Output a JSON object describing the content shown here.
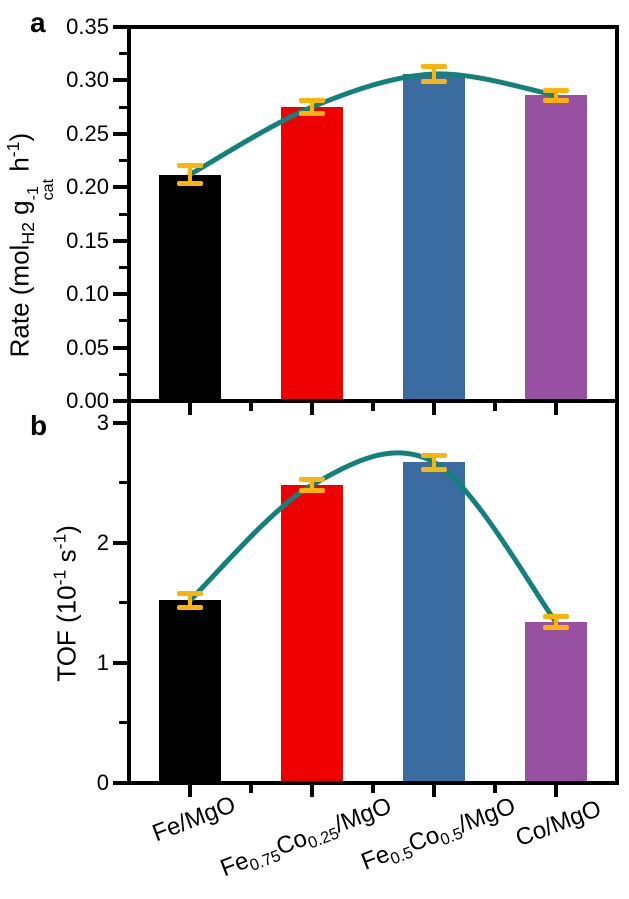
{
  "figure": {
    "background": "#ffffff",
    "panels": [
      {
        "letter": "a"
      },
      {
        "letter": "b"
      }
    ]
  },
  "categories_rich": [
    {
      "label": "Fe/MgO",
      "segments": [
        {
          "t": "Fe/MgO"
        }
      ]
    },
    {
      "label": "Fe0.75Co0.25/MgO",
      "segments": [
        {
          "t": "Fe"
        },
        {
          "sub": "0.75"
        },
        {
          "t": "Co"
        },
        {
          "sub": "0.25"
        },
        {
          "t": "/MgO"
        }
      ]
    },
    {
      "label": "Fe0.5Co0.5/MgO",
      "segments": [
        {
          "t": "Fe"
        },
        {
          "sub": "0.5"
        },
        {
          "t": "Co"
        },
        {
          "sub": "0.5"
        },
        {
          "t": "/MgO"
        }
      ]
    },
    {
      "label": "Co/MgO",
      "segments": [
        {
          "t": "Co/MgO"
        }
      ]
    }
  ],
  "chart_data": [
    {
      "type": "bar",
      "panel": "a",
      "title": "",
      "ylabel": "Rate (molH2 gcat-1 h-1)",
      "ylabel_segments": [
        {
          "t": "Rate (mol"
        },
        {
          "sub": "H2"
        },
        {
          "t": " g"
        },
        {
          "stack_sup": "-1",
          "stack_sub": "cat"
        },
        {
          "t": " h"
        },
        {
          "sup": "-1"
        },
        {
          "t": ")"
        }
      ],
      "categories": [
        "Fe/MgO",
        "Fe0.75Co0.25/MgO",
        "Fe0.5Co0.5/MgO",
        "Co/MgO"
      ],
      "values": [
        0.212,
        0.275,
        0.306,
        0.286
      ],
      "errors": [
        0.008,
        0.006,
        0.007,
        0.005
      ],
      "ylim": [
        0,
        0.35
      ],
      "yticks": [
        {
          "v": 0.0,
          "label": "0.00"
        },
        {
          "v": 0.05,
          "label": "0.05"
        },
        {
          "v": 0.1,
          "label": "0.10"
        },
        {
          "v": 0.15,
          "label": "0.15"
        },
        {
          "v": 0.2,
          "label": "0.20"
        },
        {
          "v": 0.25,
          "label": "0.25"
        },
        {
          "v": 0.3,
          "label": "0.30"
        },
        {
          "v": 0.35,
          "label": "0.35"
        }
      ],
      "bar_colors": [
        "#000000",
        "#ee0000",
        "#3b6ca1",
        "#9750a2"
      ],
      "trend_color": "#12807b",
      "error_color": "#fdb408",
      "grid": false,
      "legend": null
    },
    {
      "type": "bar",
      "panel": "b",
      "title": "",
      "ylabel": "TOF (10-1 s-1)",
      "ylabel_segments": [
        {
          "t": "TOF (10"
        },
        {
          "sup": "-1"
        },
        {
          "t": " s"
        },
        {
          "sup": "-1"
        },
        {
          "t": ")"
        }
      ],
      "categories": [
        "Fe/MgO",
        "Fe0.75Co0.25/MgO",
        "Fe0.5Co0.5/MgO",
        "Co/MgO"
      ],
      "values": [
        1.52,
        2.48,
        2.67,
        1.34
      ],
      "errors": [
        0.055,
        0.045,
        0.06,
        0.045
      ],
      "ylim": [
        0,
        3.18
      ],
      "yticks": [
        {
          "v": 0,
          "label": "0"
        },
        {
          "v": 1,
          "label": "1"
        },
        {
          "v": 2,
          "label": "2"
        },
        {
          "v": 3,
          "label": "3"
        }
      ],
      "bar_colors": [
        "#000000",
        "#ee0000",
        "#3b6ca1",
        "#9750a2"
      ],
      "trend_color": "#12807b",
      "error_color": "#fdb408",
      "grid": false,
      "legend": null
    }
  ]
}
